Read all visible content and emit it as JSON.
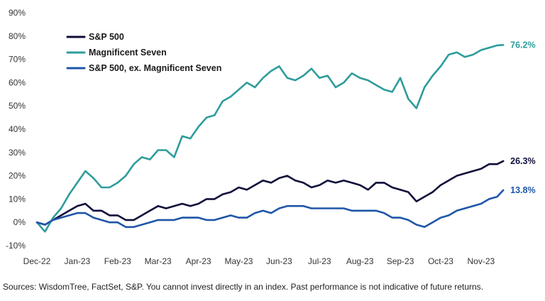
{
  "chart_data": {
    "type": "line",
    "xlabel": "",
    "ylabel": "",
    "ylim": [
      -10,
      90
    ],
    "y_ticks": [
      -10,
      0,
      10,
      20,
      30,
      40,
      50,
      60,
      70,
      80,
      90
    ],
    "y_tick_labels": [
      "-10%",
      "0%",
      "10%",
      "20%",
      "30%",
      "40%",
      "50%",
      "60%",
      "70%",
      "80%",
      "90%"
    ],
    "x_range": [
      0,
      11.6
    ],
    "x_tick_labels": [
      "Dec-22",
      "Jan-23",
      "Feb-23",
      "Mar-23",
      "Apr-23",
      "May-23",
      "Jun-23",
      "Jul-23",
      "Aug-23",
      "Sep-23",
      "Oct-23",
      "Nov-23"
    ],
    "grid": false,
    "legend_position": "top-left",
    "series": [
      {
        "name": "S&P 500",
        "color": "#0e0e3a",
        "end_label": "26.3%",
        "x": [
          0,
          0.2,
          0.4,
          0.6,
          0.8,
          1.0,
          1.2,
          1.4,
          1.6,
          1.8,
          2.0,
          2.2,
          2.4,
          2.6,
          2.8,
          3.0,
          3.2,
          3.4,
          3.6,
          3.8,
          4.0,
          4.2,
          4.4,
          4.6,
          4.8,
          5.0,
          5.2,
          5.4,
          5.6,
          5.8,
          6.0,
          6.2,
          6.4,
          6.6,
          6.8,
          7.0,
          7.2,
          7.4,
          7.6,
          7.8,
          8.0,
          8.2,
          8.4,
          8.6,
          8.8,
          9.0,
          9.2,
          9.4,
          9.6,
          9.8,
          10.0,
          10.2,
          10.4,
          10.6,
          10.8,
          11.0,
          11.2,
          11.4,
          11.55
        ],
        "values": [
          0,
          -1,
          1,
          3,
          5,
          7,
          8,
          5,
          5,
          3,
          3,
          1,
          1,
          3,
          5,
          7,
          6,
          7,
          8,
          7,
          8,
          10,
          10,
          12,
          13,
          15,
          14,
          16,
          18,
          17,
          19,
          20,
          18,
          17,
          15,
          16,
          18,
          17,
          18,
          17,
          16,
          14,
          17,
          17,
          15,
          14,
          13,
          9,
          11,
          13,
          16,
          18,
          20,
          21,
          22,
          23,
          25,
          25,
          26.3
        ]
      },
      {
        "name": "Magnificent Seven",
        "color": "#2e9c9c",
        "end_label": "76.2%",
        "x": [
          0,
          0.2,
          0.4,
          0.6,
          0.8,
          1.0,
          1.2,
          1.4,
          1.6,
          1.8,
          2.0,
          2.2,
          2.4,
          2.6,
          2.8,
          3.0,
          3.2,
          3.4,
          3.6,
          3.8,
          4.0,
          4.2,
          4.4,
          4.6,
          4.8,
          5.0,
          5.2,
          5.4,
          5.6,
          5.8,
          6.0,
          6.2,
          6.4,
          6.6,
          6.8,
          7.0,
          7.2,
          7.4,
          7.6,
          7.8,
          8.0,
          8.2,
          8.4,
          8.6,
          8.8,
          9.0,
          9.2,
          9.4,
          9.6,
          9.8,
          10.0,
          10.2,
          10.4,
          10.6,
          10.8,
          11.0,
          11.2,
          11.4,
          11.55
        ],
        "values": [
          0,
          -4,
          2,
          6,
          12,
          17,
          22,
          19,
          15,
          15,
          17,
          20,
          25,
          28,
          27,
          31,
          31,
          28,
          37,
          36,
          41,
          45,
          46,
          52,
          54,
          57,
          60,
          58,
          62,
          65,
          67,
          62,
          61,
          63,
          66,
          62,
          63,
          58,
          60,
          64,
          62,
          61,
          59,
          57,
          56,
          62,
          53,
          49,
          58,
          63,
          67,
          72,
          73,
          71,
          72,
          74,
          75,
          76,
          76.2
        ]
      },
      {
        "name": "S&P 500, ex. Magnificent Seven",
        "color": "#1f56a8",
        "end_label": "13.8%",
        "x": [
          0,
          0.2,
          0.4,
          0.6,
          0.8,
          1.0,
          1.2,
          1.4,
          1.6,
          1.8,
          2.0,
          2.2,
          2.4,
          2.6,
          2.8,
          3.0,
          3.2,
          3.4,
          3.6,
          3.8,
          4.0,
          4.2,
          4.4,
          4.6,
          4.8,
          5.0,
          5.2,
          5.4,
          5.6,
          5.8,
          6.0,
          6.2,
          6.4,
          6.6,
          6.8,
          7.0,
          7.2,
          7.4,
          7.6,
          7.8,
          8.0,
          8.2,
          8.4,
          8.6,
          8.8,
          9.0,
          9.2,
          9.4,
          9.6,
          9.8,
          10.0,
          10.2,
          10.4,
          10.6,
          10.8,
          11.0,
          11.2,
          11.4,
          11.55
        ],
        "values": [
          0,
          -1,
          1,
          2,
          3,
          4,
          4,
          2,
          1,
          0,
          0,
          -2,
          -2,
          -1,
          0,
          1,
          1,
          1,
          2,
          2,
          2,
          1,
          1,
          2,
          3,
          2,
          2,
          4,
          5,
          4,
          6,
          7,
          7,
          7,
          6,
          6,
          6,
          6,
          6,
          5,
          5,
          5,
          5,
          4,
          2,
          2,
          1,
          -1,
          -2,
          0,
          2,
          3,
          5,
          6,
          7,
          8,
          10,
          11,
          13.8
        ]
      }
    ]
  },
  "source": "Sources: WisdomTree, FactSet, S&P. You cannot invest directly in an index. Past performance is not indicative of future returns."
}
